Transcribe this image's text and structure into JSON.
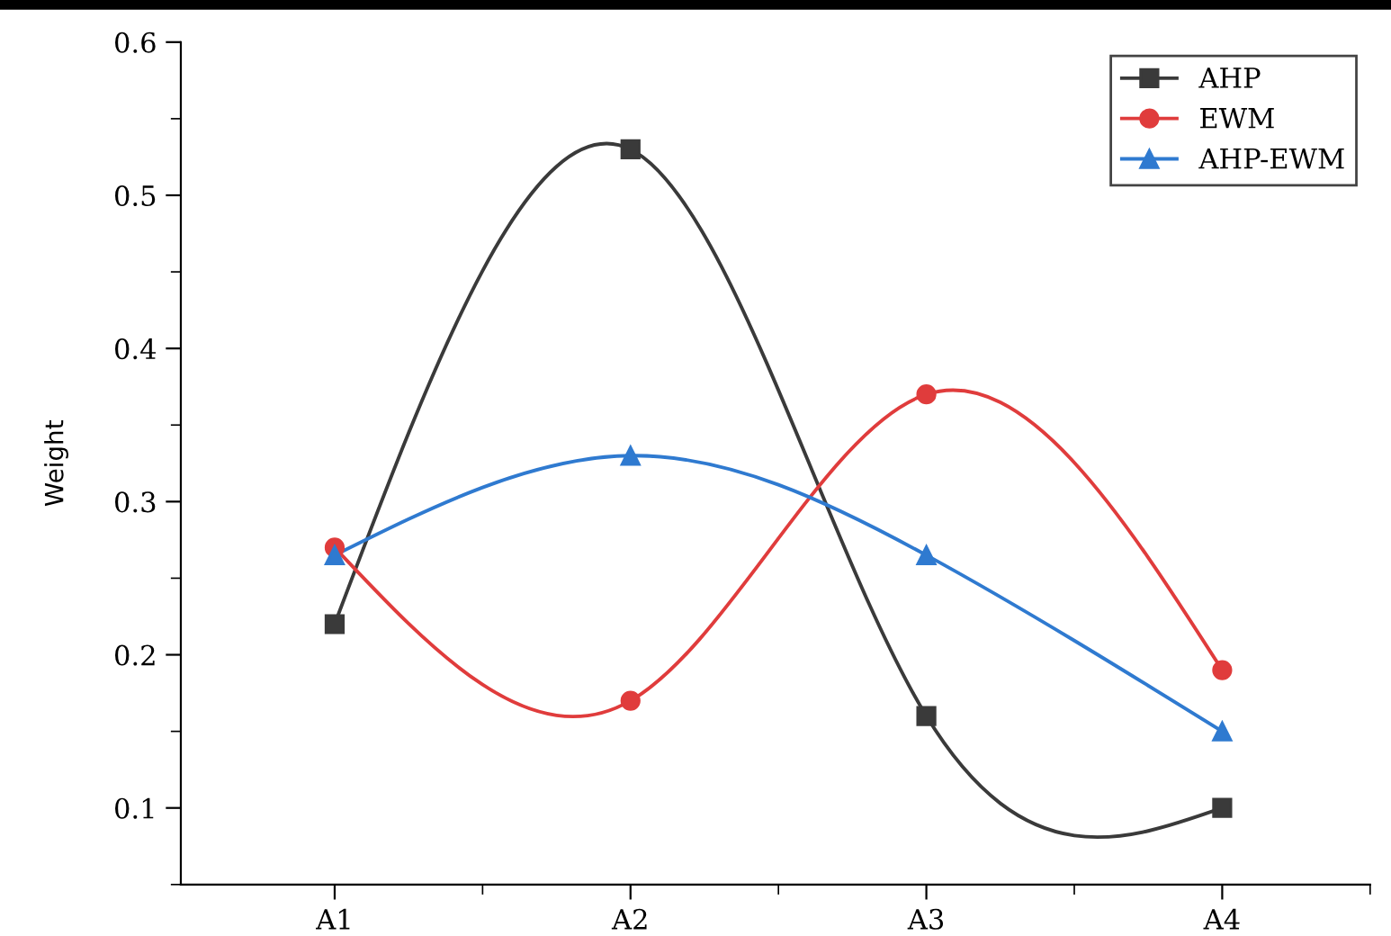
{
  "chart_data": {
    "type": "line",
    "ylabel": "Weight",
    "categories": [
      "A1",
      "A2",
      "A3",
      "A4"
    ],
    "series": [
      {
        "name": "AHP",
        "color": "#3a3a3a",
        "marker": "square",
        "values": [
          0.22,
          0.53,
          0.16,
          0.1
        ]
      },
      {
        "name": "EWM",
        "color": "#e03c3c",
        "marker": "circle",
        "values": [
          0.27,
          0.17,
          0.37,
          0.19
        ]
      },
      {
        "name": "AHP-EWM",
        "color": "#2f7ad0",
        "marker": "triangle",
        "values": [
          0.265,
          0.33,
          0.265,
          0.15
        ]
      }
    ],
    "ylim": [
      0.05,
      0.6
    ],
    "yticks": [
      0.1,
      0.2,
      0.3,
      0.4,
      0.5,
      0.6
    ],
    "grid": false,
    "legend": "top right",
    "line_style": "solid"
  }
}
